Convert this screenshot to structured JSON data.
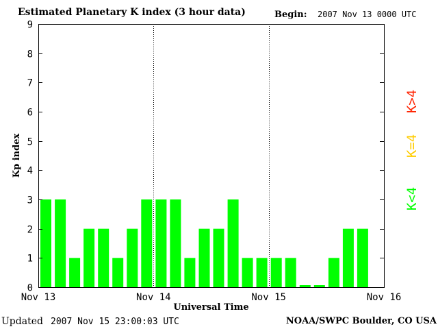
{
  "header": {
    "title": "Estimated Planetary K index (3 hour data)",
    "begin_label": "Begin:",
    "begin_value": "2007 Nov 13 0000 UTC"
  },
  "footer": {
    "updated_label": "Updated",
    "updated_value": "2007 Nov 15 23:00:03 UTC",
    "credit": "NOAA/SWPC Boulder, CO USA"
  },
  "colors": {
    "bar_low": "#00ff00",
    "bar_mid": "#ffcc00",
    "bar_high": "#ff2200",
    "day_divider": "#000000"
  },
  "chart_data": {
    "type": "bar",
    "xlabel": "Universal Time",
    "ylabel": "Kp index",
    "ylim": [
      0,
      9
    ],
    "yticks": [
      "0",
      "1",
      "2",
      "3",
      "4",
      "5",
      "6",
      "7",
      "8",
      "9"
    ],
    "xlim": [
      0,
      72
    ],
    "x_units": "hours since 2007 Nov 13 0000 UTC",
    "xticks": [
      "Nov 13",
      "Nov 14",
      "Nov 15",
      "Nov 16"
    ],
    "interval_hours": 3,
    "values": [
      3,
      3,
      1,
      2,
      2,
      1,
      2,
      3,
      3,
      3,
      1,
      2,
      2,
      3,
      1,
      1,
      1,
      1,
      0.07,
      0.07,
      1,
      2,
      2
    ],
    "grid": false,
    "legend": {
      "placement": "right",
      "entries": [
        {
          "label": "K<4",
          "color": "#00ff00"
        },
        {
          "label": "K=4",
          "color": "#ffcc00"
        },
        {
          "label": "K>4",
          "color": "#ff2200"
        }
      ]
    }
  }
}
